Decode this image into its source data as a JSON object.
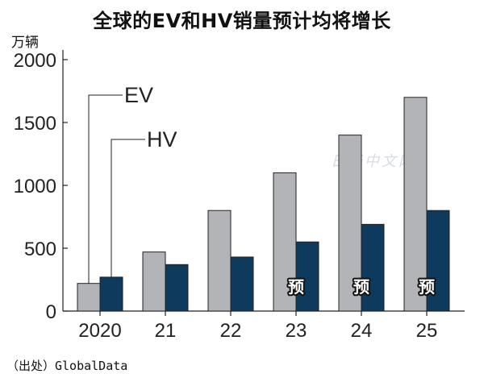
{
  "chart_data": {
    "type": "bar",
    "title": "全球的EV和HV销量预计均将增长",
    "ylabel": "万辆",
    "source": "（出处）GlobalData",
    "watermark": "日经中文网",
    "categories": [
      "2020",
      "21",
      "22",
      "23",
      "24",
      "25"
    ],
    "forecast_label": "预",
    "forecast_categories": [
      "23",
      "24",
      "25"
    ],
    "series": [
      {
        "name": "EV",
        "color": "#b2b4b8",
        "values": [
          220,
          470,
          800,
          1100,
          1400,
          1700
        ]
      },
      {
        "name": "HV",
        "color": "#0e3a5e",
        "values": [
          270,
          370,
          430,
          550,
          690,
          800
        ]
      }
    ],
    "yticks": [
      0,
      500,
      1000,
      1500,
      2000
    ],
    "ylim": [
      0,
      2000
    ],
    "grid": false,
    "legend": "callout-lines"
  }
}
